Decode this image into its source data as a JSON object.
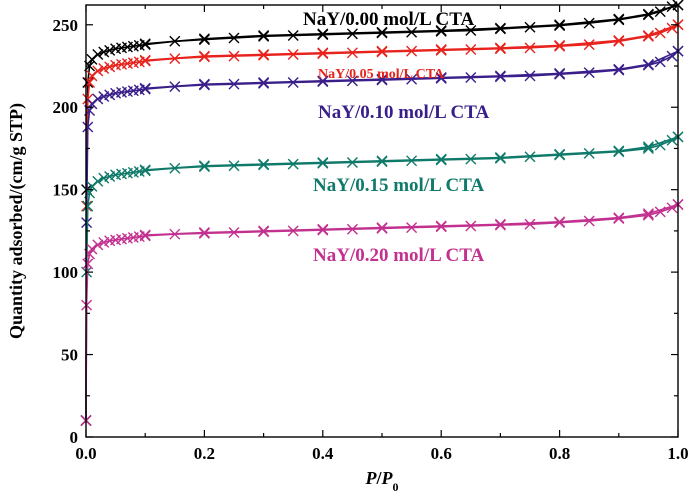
{
  "chart_data": {
    "type": "line",
    "title": "",
    "xlabel_parts": {
      "p": "P",
      "slash": "/",
      "p0": "P",
      "sub": "0"
    },
    "ylabel": "Quantity adsorbed/(cm/g STP)",
    "xlim": [
      0,
      1.0
    ],
    "ylim": [
      0,
      262
    ],
    "x_ticks": [
      0.0,
      0.2,
      0.4,
      0.6,
      0.8,
      1.0
    ],
    "x_tick_labels": [
      "0.0",
      "0.2",
      "0.4",
      "0.6",
      "0.8",
      "1.0"
    ],
    "y_ticks": [
      0,
      50,
      100,
      150,
      200,
      250
    ],
    "y_tick_labels": [
      "0",
      "50",
      "100",
      "150",
      "200",
      "250"
    ],
    "grid": false,
    "legend": "inline labels",
    "series": [
      {
        "name": "NaY/0.00 mol/L  CTA",
        "color": "#000000",
        "adsorption": {
          "x": [
            0.0,
            0.001,
            0.003,
            0.006,
            0.01,
            0.02,
            0.03,
            0.04,
            0.05,
            0.06,
            0.07,
            0.08,
            0.09,
            0.1,
            0.15,
            0.2,
            0.25,
            0.3,
            0.35,
            0.4,
            0.45,
            0.5,
            0.55,
            0.6,
            0.65,
            0.7,
            0.75,
            0.8,
            0.85,
            0.9,
            0.95,
            0.97,
            0.99,
            1.0
          ],
          "y": [
            10,
            150,
            215,
            225,
            229,
            232,
            233.5,
            234.5,
            235.5,
            236,
            236.5,
            237,
            237.5,
            238,
            240,
            241,
            242,
            243,
            243.5,
            244,
            244.5,
            245,
            245.5,
            246,
            246.5,
            247.5,
            248.5,
            249.5,
            251,
            253,
            256,
            258,
            261,
            262
          ]
        },
        "desorption": {
          "x": [
            0.1,
            0.2,
            0.3,
            0.4,
            0.5,
            0.6,
            0.7,
            0.8,
            0.9,
            0.95,
            1.0
          ],
          "y": [
            238.5,
            241.5,
            243.5,
            244.5,
            245.5,
            246.5,
            248,
            250,
            253.5,
            256.5,
            262
          ]
        }
      },
      {
        "name": "NaY/0.05  mol/L  CTA",
        "color": "#e8221c",
        "adsorption": {
          "x": [
            0.0,
            0.001,
            0.003,
            0.006,
            0.01,
            0.02,
            0.03,
            0.04,
            0.05,
            0.06,
            0.07,
            0.08,
            0.09,
            0.1,
            0.15,
            0.2,
            0.25,
            0.3,
            0.35,
            0.4,
            0.45,
            0.5,
            0.55,
            0.6,
            0.65,
            0.7,
            0.75,
            0.8,
            0.85,
            0.9,
            0.95,
            0.97,
            0.99,
            1.0
          ],
          "y": [
            10,
            140,
            205,
            215,
            219,
            222,
            223.5,
            224.5,
            225.5,
            226,
            226.5,
            227,
            227.5,
            228,
            229.5,
            230.5,
            231,
            231.5,
            232,
            232.5,
            233,
            233.5,
            234,
            234.5,
            235,
            235.5,
            236,
            237,
            238,
            240,
            243,
            245,
            248,
            250
          ]
        },
        "desorption": {
          "x": [
            0.1,
            0.2,
            0.3,
            0.4,
            0.5,
            0.6,
            0.7,
            0.8,
            0.9,
            0.95,
            1.0
          ],
          "y": [
            228.5,
            231,
            232,
            233,
            234,
            235,
            236,
            237.5,
            240.5,
            243.5,
            250
          ]
        }
      },
      {
        "name": "NaY/0.10  mol/L  CTA",
        "color": "#3a1f8a",
        "adsorption": {
          "x": [
            0.0,
            0.001,
            0.003,
            0.006,
            0.01,
            0.02,
            0.03,
            0.04,
            0.05,
            0.06,
            0.07,
            0.08,
            0.09,
            0.1,
            0.15,
            0.2,
            0.25,
            0.3,
            0.35,
            0.4,
            0.45,
            0.5,
            0.55,
            0.6,
            0.65,
            0.7,
            0.75,
            0.8,
            0.85,
            0.9,
            0.95,
            0.97,
            0.99,
            1.0
          ],
          "y": [
            10,
            130,
            188,
            198,
            202,
            205,
            206.5,
            207.5,
            208.5,
            209,
            209.5,
            210,
            210.5,
            211,
            212.5,
            213.5,
            214,
            214.5,
            215,
            215.5,
            216,
            216.5,
            217,
            217.5,
            218,
            218.5,
            219,
            220,
            221,
            222.5,
            225.5,
            227.5,
            231,
            234
          ]
        },
        "desorption": {
          "x": [
            0.1,
            0.2,
            0.3,
            0.4,
            0.5,
            0.6,
            0.7,
            0.8,
            0.9,
            0.95,
            1.0
          ],
          "y": [
            211.5,
            214,
            215,
            216,
            217,
            218,
            219,
            220.5,
            223,
            226,
            234
          ]
        }
      },
      {
        "name": "NaY/0.15  mol/L  CTA",
        "color": "#0f7a6a",
        "adsorption": {
          "x": [
            0.0,
            0.001,
            0.003,
            0.006,
            0.01,
            0.02,
            0.03,
            0.04,
            0.05,
            0.06,
            0.07,
            0.08,
            0.09,
            0.1,
            0.15,
            0.2,
            0.25,
            0.3,
            0.35,
            0.4,
            0.45,
            0.5,
            0.55,
            0.6,
            0.65,
            0.7,
            0.75,
            0.8,
            0.85,
            0.9,
            0.95,
            0.97,
            0.99,
            1.0
          ],
          "y": [
            10,
            100,
            140,
            148,
            152,
            155,
            157,
            158,
            159,
            159.5,
            160,
            160.5,
            161,
            161.5,
            163,
            164,
            164.5,
            165,
            165.5,
            166,
            166.5,
            167,
            167.5,
            168,
            168.5,
            169,
            170,
            171,
            172,
            173,
            175,
            177,
            180,
            182
          ]
        },
        "desorption": {
          "x": [
            0.1,
            0.2,
            0.3,
            0.4,
            0.5,
            0.6,
            0.7,
            0.8,
            0.9,
            0.95,
            1.0
          ],
          "y": [
            162,
            164.5,
            165.5,
            166.5,
            167.5,
            168.5,
            169.5,
            171.5,
            173.5,
            176,
            182
          ]
        }
      },
      {
        "name": "NaY/0.20  mol/L  CTA",
        "color": "#c2318f",
        "adsorption": {
          "x": [
            0.0,
            0.001,
            0.003,
            0.006,
            0.01,
            0.02,
            0.03,
            0.04,
            0.05,
            0.06,
            0.07,
            0.08,
            0.09,
            0.1,
            0.15,
            0.2,
            0.25,
            0.3,
            0.35,
            0.4,
            0.45,
            0.5,
            0.55,
            0.6,
            0.65,
            0.7,
            0.75,
            0.8,
            0.85,
            0.9,
            0.95,
            0.97,
            0.99,
            1.0
          ],
          "y": [
            10,
            80,
            105,
            111,
            114,
            116.5,
            118,
            119,
            119.5,
            120,
            120.5,
            121,
            121.5,
            122,
            123,
            123.5,
            124,
            124.5,
            125,
            125.5,
            126,
            126.5,
            127,
            127.5,
            128,
            128.5,
            129,
            130,
            131,
            132.5,
            134.5,
            136.5,
            139,
            141
          ]
        },
        "desorption": {
          "x": [
            0.1,
            0.2,
            0.3,
            0.4,
            0.5,
            0.6,
            0.7,
            0.8,
            0.9,
            0.95,
            1.0
          ],
          "y": [
            122.5,
            124,
            125,
            126,
            127,
            128,
            129,
            130.5,
            133,
            135.5,
            141
          ]
        }
      }
    ]
  }
}
